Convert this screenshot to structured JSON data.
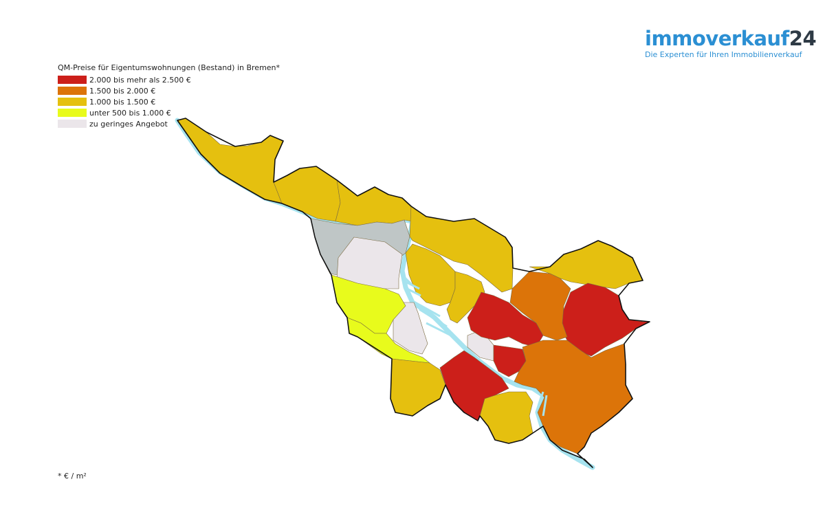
{
  "brand": {
    "name_main": "immoverkauf",
    "name_number": "24",
    "tagline": "Die Experten für Ihren Immobilienverkauf",
    "colors": {
      "main": "#2b8fd3",
      "number": "#2e3a45"
    }
  },
  "legend": {
    "title": "QM-Preise für Eigentumswohnungen (Bestand) in Bremen*",
    "items": [
      {
        "label": "2.000 bis mehr als 2.500 €",
        "color": "#cc1f1a"
      },
      {
        "label": "1.500 bis 2.000 €",
        "color": "#dc7409"
      },
      {
        "label": "1.000 bis 1.500 €",
        "color": "#e5c00f"
      },
      {
        "label": "unter 500 bis 1.000 €",
        "color": "#e8fb1c"
      },
      {
        "label": "zu geringes Angebot",
        "color": "#ebe6ea"
      }
    ]
  },
  "map": {
    "water_color": "#a6e3ef",
    "harbor_area_color": "#bfc6c6"
  },
  "footnote": "* € / m²"
}
